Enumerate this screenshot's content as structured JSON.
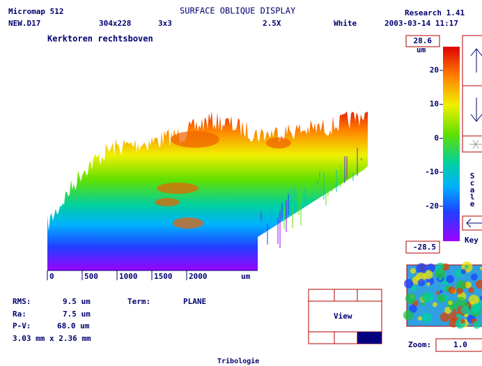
{
  "header": {
    "app": "Micromap 512",
    "title": "SURFACE OBLIQUE DISPLAY",
    "version": "Research 1.41",
    "file": "NEW.D17",
    "size": "304x228",
    "binning": "3x3",
    "magnification": "2.5X",
    "light": "White",
    "datetime": "2003-03-14 11:17"
  },
  "description": "Kerktoren rechtsboven",
  "color_scale": {
    "max": "28.6",
    "unit": "um",
    "ticks": [
      "20",
      "10",
      "0",
      "-10",
      "-20"
    ],
    "min": "-28.5",
    "scale_label": "Scale",
    "key_label": "Key"
  },
  "x_axis": {
    "ticks": [
      "0",
      "500",
      "1000",
      "1500",
      "2000"
    ],
    "unit": "um"
  },
  "stats": {
    "rms_label": "RMS:",
    "rms": "9.5 um",
    "ra_label": "Ra:",
    "ra": "7.5 um",
    "pv_label": "P-V:",
    "pv": "68.0 um",
    "dimensions": "3.03 mm x 2.36 mm",
    "term_label": "Term:",
    "term": "PLANE"
  },
  "view_label": "View",
  "zoom": {
    "label": "Zoom:",
    "value": "1.0"
  },
  "footer": "Tribologie"
}
